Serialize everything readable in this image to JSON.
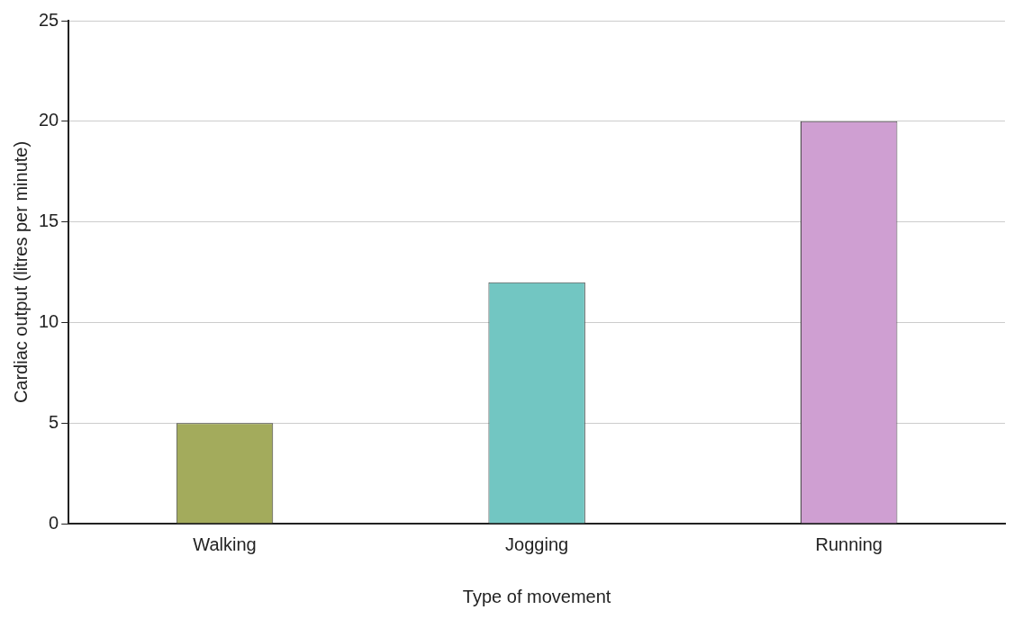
{
  "chart_data": {
    "type": "bar",
    "xlabel": "Type of movement",
    "ylabel": "Cardiac output (litres per minute)",
    "categories": [
      "Walking",
      "Jogging",
      "Running"
    ],
    "values": [
      5,
      12,
      20
    ],
    "colors": [
      "#a3ab5c",
      "#72c6c2",
      "#cf9fd2"
    ],
    "ylim": [
      0,
      25
    ],
    "yticks": [
      0,
      5,
      10,
      15,
      20,
      25
    ],
    "grid": "y",
    "legend": false
  }
}
